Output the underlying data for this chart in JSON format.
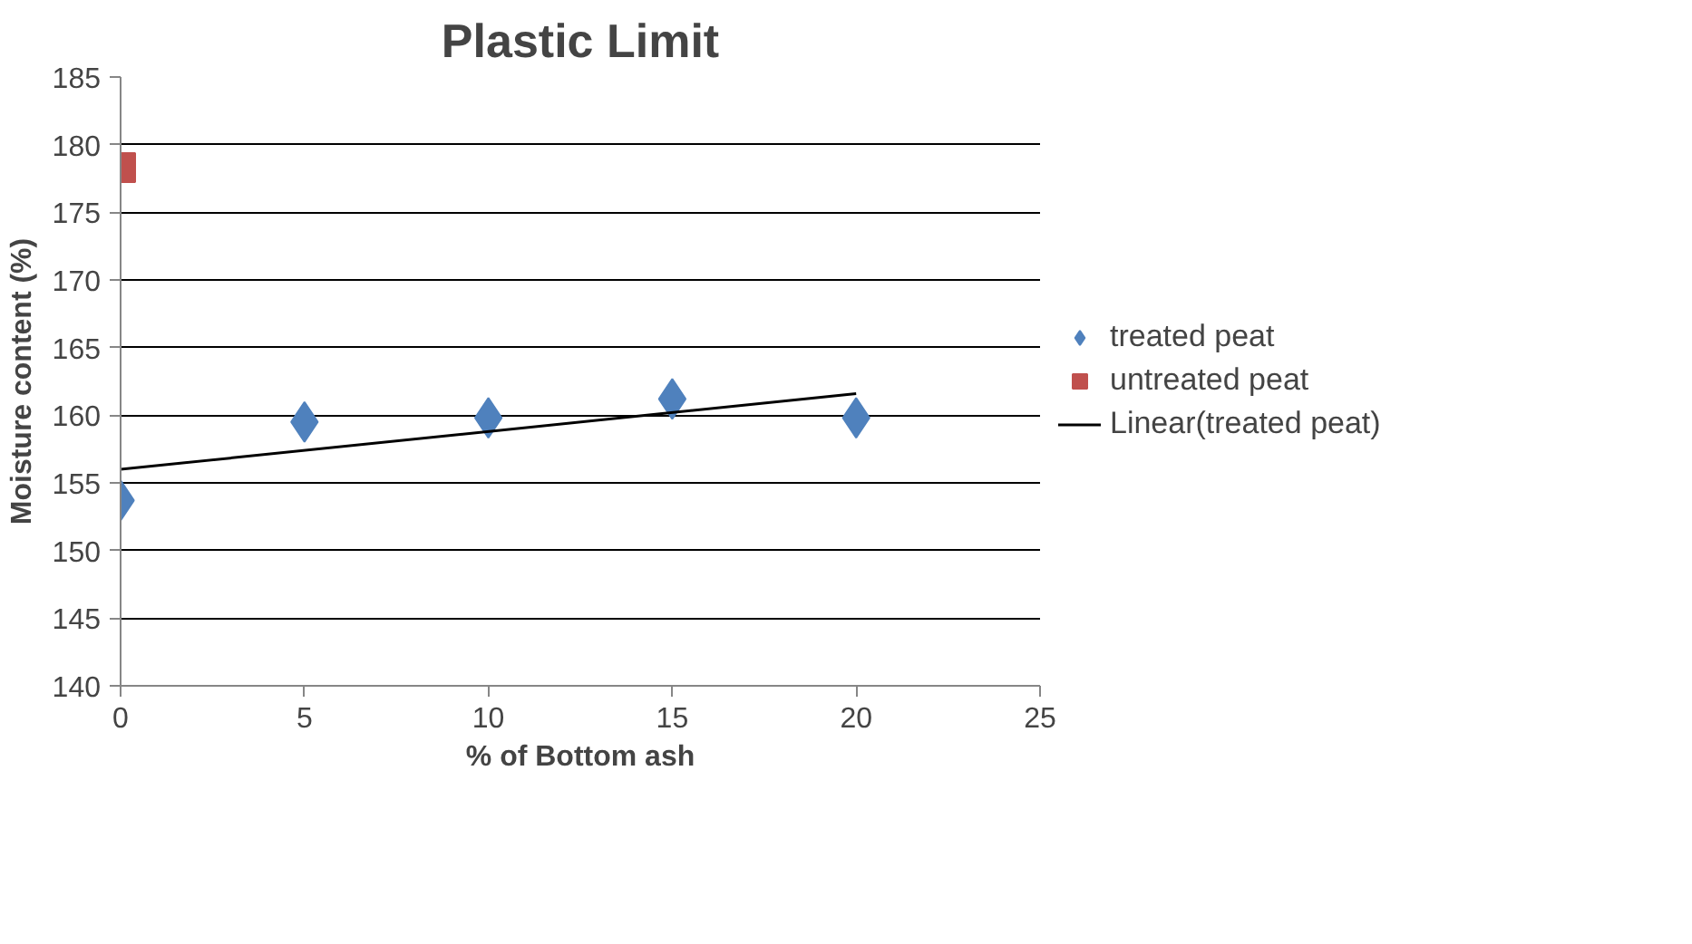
{
  "chart_data": {
    "type": "scatter",
    "title": "Plastic Limit",
    "xlabel": "% of Bottom ash",
    "ylabel": "Moisture content (%)",
    "xlim": [
      0,
      25
    ],
    "xticks": [
      0,
      5,
      10,
      15,
      20,
      25
    ],
    "ylim": [
      140,
      185
    ],
    "yticks": [
      140,
      145,
      150,
      155,
      160,
      165,
      170,
      175,
      180,
      185
    ],
    "grid": "y",
    "legend": "right",
    "series": [
      {
        "name": "treated peat",
        "color": "#4f81bd",
        "marker": "diamond",
        "x": [
          0,
          5,
          10,
          15,
          20
        ],
        "values": [
          153.7,
          159.5,
          159.8,
          161.2,
          159.8
        ]
      },
      {
        "name": "untreated peat",
        "color": "#c0504d",
        "marker": "square",
        "x": [
          0
        ],
        "values": [
          178.3
        ]
      },
      {
        "name": "Linear(treated peat)",
        "type": "line",
        "color": "#000000",
        "x": [
          0,
          20
        ],
        "values": [
          156.0,
          161.6
        ]
      }
    ]
  }
}
